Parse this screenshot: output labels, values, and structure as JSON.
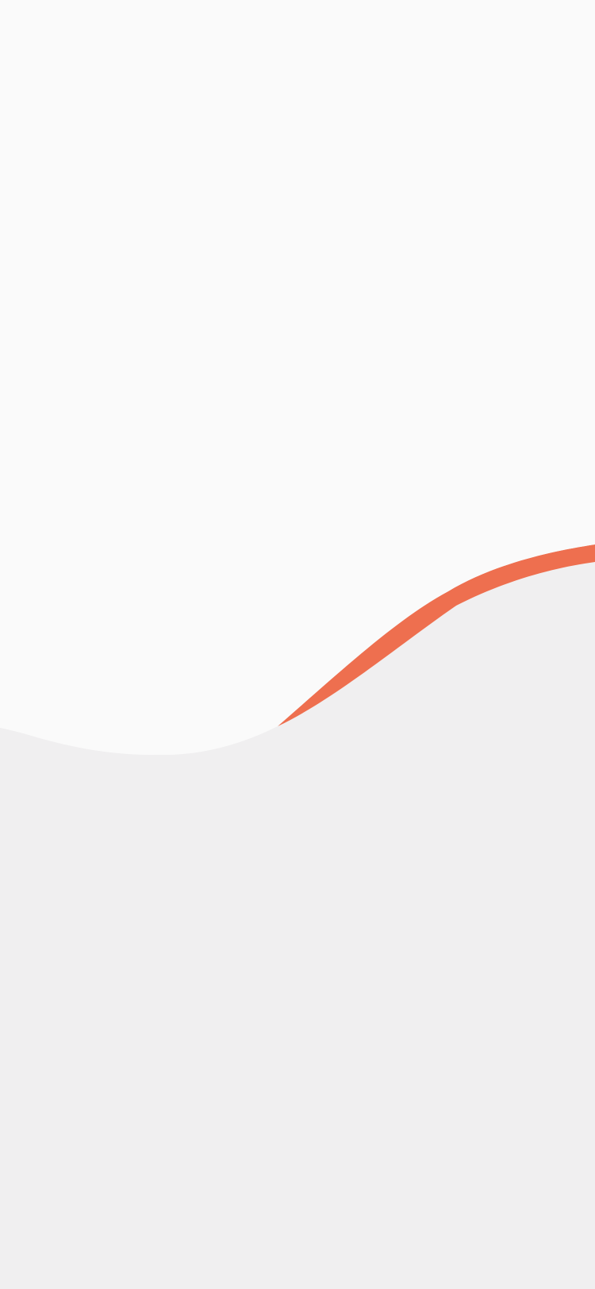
{
  "screen": {
    "background_color": "#f0eff0",
    "header_color": "#fafafa",
    "accent_color": "#ee6f4f"
  }
}
